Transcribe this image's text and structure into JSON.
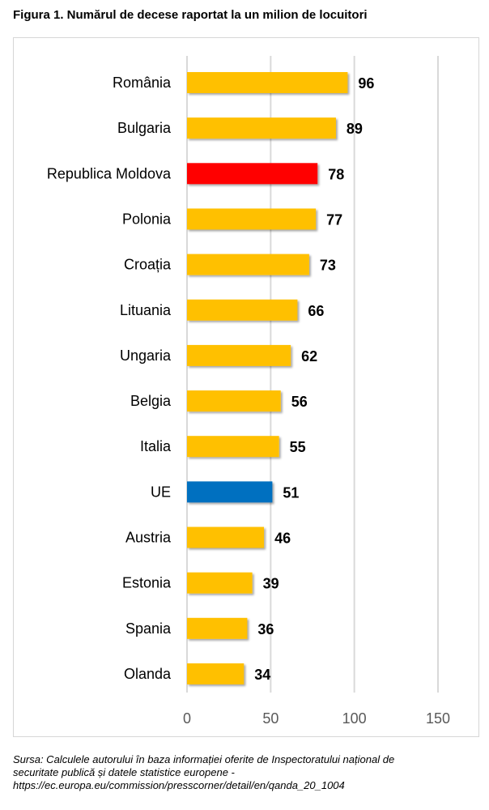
{
  "figure": {
    "title": "Figura 1. Numărul de decese raportat la un milion de locuitori"
  },
  "source": {
    "lines": [
      "Sursa: Calculele autorului în baza informației oferite de Inspectoratului național de",
      "securitate publică și datele statistice europene -",
      "https://ec.europa.eu/commission/presscorner/detail/en/qanda_20_1004"
    ]
  },
  "colors": {
    "default_bar": "#FFC000",
    "moldova_bar": "#FF0000",
    "eu_bar": "#0070C0",
    "gridline": "#d9d9d9",
    "tick_label": "#595959"
  },
  "chart_data": {
    "type": "bar",
    "orientation": "horizontal",
    "title": "",
    "xlabel": "",
    "ylabel": "",
    "categories": [
      "România",
      "Bulgaria",
      "Republica Moldova",
      "Polonia",
      "Croația",
      "Lituania",
      "Ungaria",
      "Belgia",
      "Italia",
      "UE",
      "Austria",
      "Estonia",
      "Spania",
      "Olanda"
    ],
    "values": [
      96,
      89,
      78,
      77,
      73,
      66,
      62,
      56,
      55,
      51,
      46,
      39,
      36,
      34
    ],
    "bar_colors": [
      "#FFC000",
      "#FFC000",
      "#FF0000",
      "#FFC000",
      "#FFC000",
      "#FFC000",
      "#FFC000",
      "#FFC000",
      "#FFC000",
      "#0070C0",
      "#FFC000",
      "#FFC000",
      "#FFC000",
      "#FFC000"
    ],
    "xlim": [
      0,
      150
    ],
    "xticks": [
      0,
      50,
      100,
      150
    ],
    "grid": "vertical",
    "legend": "none",
    "data_labels": true
  }
}
